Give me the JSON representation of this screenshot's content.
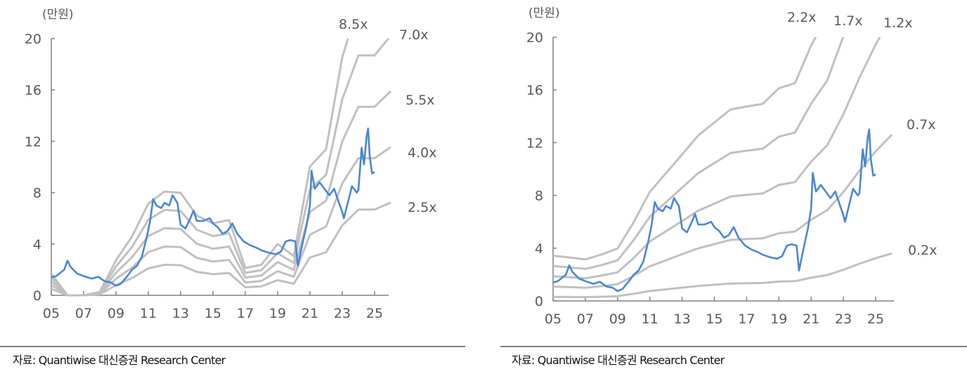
{
  "source_left": "자료: Quantiwise 대신증권 Research Center",
  "source_right": "자료: Quantiwise 대신증권 Research Center",
  "colors": {
    "price": "#4a86d6",
    "band": "#c0c0c0",
    "axis": "#808080"
  },
  "chart_data": [
    {
      "type": "line",
      "unit": "(만원)",
      "ylim": [
        0,
        20
      ],
      "yticks": [
        0,
        4,
        8,
        12,
        16,
        20
      ],
      "xticks": [
        "05",
        "07",
        "09",
        "11",
        "13",
        "15",
        "17",
        "19",
        "21",
        "23",
        "25"
      ],
      "xlim": [
        2005,
        2026
      ],
      "grid": false,
      "years": [
        2005,
        2006,
        2007,
        2008,
        2009,
        2010,
        2011,
        2012,
        2013,
        2014,
        2015,
        2016,
        2017,
        2018,
        2019,
        2020,
        2021,
        2022,
        2023,
        2024,
        2025,
        2026
      ],
      "bands": [
        {
          "name": "8.5x",
          "values": [
            1.7,
            0,
            0,
            0.26,
            2.72,
            4.59,
            7.14,
            8.08,
            7.99,
            6.21,
            5.61,
            5.87,
            2.13,
            2.38,
            4.0,
            3.06,
            10.03,
            11.39,
            18.53,
            22.7,
            22.7,
            24.57
          ]
        },
        {
          "name": "7.0x",
          "values": [
            1.4,
            0,
            0,
            0.21,
            2.24,
            3.78,
            5.88,
            6.65,
            6.58,
            5.11,
            4.62,
            4.83,
            1.75,
            1.96,
            3.29,
            2.52,
            8.26,
            9.38,
            15.26,
            18.69,
            18.69,
            20.23
          ]
        },
        {
          "name": "5.5x",
          "values": [
            1.1,
            0,
            0,
            0.17,
            1.76,
            2.97,
            4.62,
            5.23,
            5.17,
            4.02,
            3.63,
            3.8,
            1.38,
            1.54,
            2.59,
            1.98,
            6.49,
            7.37,
            11.99,
            14.69,
            14.69,
            15.9
          ]
        },
        {
          "name": "4.0x",
          "values": [
            0.8,
            0,
            0,
            0.12,
            1.28,
            2.16,
            3.36,
            3.8,
            3.76,
            2.92,
            2.64,
            2.76,
            1.0,
            1.12,
            1.88,
            1.44,
            4.72,
            5.36,
            8.72,
            10.68,
            10.68,
            11.56
          ]
        },
        {
          "name": "2.5x",
          "values": [
            0.5,
            0,
            0,
            0.08,
            0.8,
            1.35,
            2.1,
            2.38,
            2.35,
            1.83,
            1.65,
            1.73,
            0.63,
            0.7,
            1.18,
            0.9,
            2.95,
            3.35,
            5.45,
            6.68,
            6.68,
            7.23
          ]
        }
      ],
      "price": {
        "x": [
          2005.0,
          2005.3,
          2005.8,
          2006.0,
          2006.2,
          2006.6,
          2007.0,
          2007.5,
          2007.9,
          2008.3,
          2008.7,
          2009.0,
          2009.3,
          2009.7,
          2010.0,
          2010.3,
          2010.6,
          2010.9,
          2011.1,
          2011.3,
          2011.5,
          2011.8,
          2012.0,
          2012.3,
          2012.5,
          2012.8,
          2013.0,
          2013.3,
          2013.6,
          2013.8,
          2014.0,
          2014.4,
          2014.8,
          2015.0,
          2015.3,
          2015.6,
          2015.9,
          2016.2,
          2016.5,
          2016.9,
          2017.3,
          2017.7,
          2018.0,
          2018.5,
          2018.9,
          2019.2,
          2019.5,
          2019.8,
          2020.1,
          2020.25,
          2020.5,
          2020.8,
          2021.0,
          2021.1,
          2021.3,
          2021.6,
          2021.9,
          2022.2,
          2022.5,
          2022.8,
          2023.0,
          2023.1,
          2023.4,
          2023.6,
          2023.9,
          2024.0,
          2024.2,
          2024.35,
          2024.5,
          2024.6,
          2024.7,
          2024.85,
          2025.0
        ],
        "y": [
          1.4,
          1.5,
          2.0,
          2.7,
          2.2,
          1.7,
          1.5,
          1.3,
          1.45,
          1.1,
          1.0,
          0.75,
          0.9,
          1.5,
          2.0,
          2.3,
          3.0,
          4.5,
          5.7,
          7.5,
          7.0,
          6.8,
          7.2,
          7.0,
          7.8,
          7.2,
          5.5,
          5.2,
          6.0,
          6.6,
          5.8,
          5.8,
          6.0,
          5.6,
          5.3,
          4.8,
          5.0,
          5.6,
          4.8,
          4.2,
          3.9,
          3.7,
          3.5,
          3.3,
          3.2,
          3.4,
          4.2,
          4.3,
          4.2,
          2.3,
          3.8,
          5.5,
          7.0,
          9.7,
          8.3,
          8.8,
          8.3,
          7.8,
          8.3,
          7.2,
          6.5,
          6.0,
          7.5,
          8.5,
          8.0,
          8.2,
          11.5,
          10.2,
          12.3,
          13.0,
          10.8,
          9.5,
          9.6
        ]
      }
    },
    {
      "type": "line",
      "unit": "(만원)",
      "ylim": [
        0,
        20
      ],
      "yticks": [
        0,
        4,
        8,
        12,
        16,
        20
      ],
      "xticks": [
        "05",
        "07",
        "09",
        "11",
        "13",
        "15",
        "17",
        "19",
        "21",
        "23",
        "25"
      ],
      "xlim": [
        2005,
        2026
      ],
      "grid": false,
      "years": [
        2005,
        2006,
        2007,
        2008,
        2009,
        2010,
        2011,
        2012,
        2013,
        2014,
        2015,
        2016,
        2017,
        2018,
        2019,
        2020,
        2021,
        2022,
        2023,
        2024,
        2025,
        2026
      ],
      "bands": [
        {
          "name": "2.2x",
          "values": [
            3.43,
            3.3,
            3.15,
            3.52,
            3.98,
            5.98,
            8.27,
            9.68,
            11.11,
            12.54,
            13.53,
            14.52,
            14.74,
            14.94,
            16.13,
            16.52,
            19.36,
            21.65,
            25.96,
            31.02,
            35.64,
            39.6
          ]
        },
        {
          "name": "1.7x",
          "values": [
            2.65,
            2.55,
            2.43,
            2.72,
            3.08,
            4.62,
            6.39,
            7.48,
            8.59,
            9.69,
            10.46,
            11.22,
            11.39,
            11.54,
            12.46,
            12.77,
            14.96,
            16.73,
            20.06,
            23.97,
            27.54,
            30.6
          ]
        },
        {
          "name": "1.2x",
          "values": [
            1.87,
            1.8,
            1.72,
            1.92,
            2.17,
            3.26,
            4.51,
            5.28,
            6.06,
            6.84,
            7.38,
            7.92,
            8.04,
            8.15,
            8.8,
            9.01,
            10.56,
            11.81,
            14.16,
            16.92,
            19.44,
            21.6
          ]
        },
        {
          "name": "0.7x",
          "values": [
            1.09,
            1.05,
            1.0,
            1.12,
            1.27,
            1.9,
            2.63,
            3.08,
            3.54,
            3.99,
            4.31,
            4.62,
            4.69,
            4.75,
            5.13,
            5.26,
            6.16,
            6.89,
            8.26,
            9.87,
            11.34,
            12.6
          ]
        },
        {
          "name": "0.2x",
          "values": [
            0.31,
            0.3,
            0.29,
            0.32,
            0.36,
            0.54,
            0.75,
            0.88,
            1.01,
            1.14,
            1.23,
            1.32,
            1.34,
            1.36,
            1.47,
            1.5,
            1.76,
            1.97,
            2.36,
            2.82,
            3.24,
            3.6
          ]
        }
      ],
      "price": {
        "x": [
          2005.0,
          2005.3,
          2005.8,
          2006.0,
          2006.2,
          2006.6,
          2007.0,
          2007.5,
          2007.9,
          2008.3,
          2008.7,
          2009.0,
          2009.3,
          2009.7,
          2010.0,
          2010.3,
          2010.6,
          2010.9,
          2011.1,
          2011.3,
          2011.5,
          2011.8,
          2012.0,
          2012.3,
          2012.5,
          2012.8,
          2013.0,
          2013.3,
          2013.6,
          2013.8,
          2014.0,
          2014.4,
          2014.8,
          2015.0,
          2015.3,
          2015.6,
          2015.9,
          2016.2,
          2016.5,
          2016.9,
          2017.3,
          2017.7,
          2018.0,
          2018.5,
          2018.9,
          2019.2,
          2019.5,
          2019.8,
          2020.1,
          2020.25,
          2020.5,
          2020.8,
          2021.0,
          2021.1,
          2021.3,
          2021.6,
          2021.9,
          2022.2,
          2022.5,
          2022.8,
          2023.0,
          2023.1,
          2023.4,
          2023.6,
          2023.9,
          2024.0,
          2024.2,
          2024.35,
          2024.5,
          2024.6,
          2024.7,
          2024.85,
          2025.0
        ],
        "y": [
          1.4,
          1.5,
          2.0,
          2.7,
          2.2,
          1.7,
          1.5,
          1.3,
          1.45,
          1.1,
          1.0,
          0.75,
          0.9,
          1.5,
          2.0,
          2.3,
          3.0,
          4.5,
          5.7,
          7.5,
          7.0,
          6.8,
          7.2,
          7.0,
          7.8,
          7.2,
          5.5,
          5.2,
          6.0,
          6.6,
          5.8,
          5.8,
          6.0,
          5.6,
          5.3,
          4.8,
          5.0,
          5.6,
          4.8,
          4.2,
          3.9,
          3.7,
          3.5,
          3.3,
          3.2,
          3.4,
          4.2,
          4.3,
          4.2,
          2.3,
          3.8,
          5.5,
          7.0,
          9.7,
          8.3,
          8.8,
          8.3,
          7.8,
          8.3,
          7.2,
          6.5,
          6.0,
          7.5,
          8.5,
          8.0,
          8.2,
          11.5,
          10.2,
          12.3,
          13.0,
          10.8,
          9.5,
          9.6
        ]
      }
    }
  ]
}
